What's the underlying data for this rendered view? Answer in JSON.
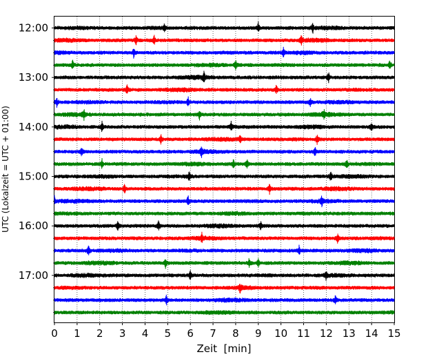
{
  "chart_data": {
    "type": "line",
    "subtype": "helicorder",
    "title": "",
    "xlabel": "Zeit  [min]",
    "ylabel": "UTC (Lokalzeit = UTC + 01:00)",
    "xlim": [
      0,
      15
    ],
    "x_ticks": [
      "0",
      "1",
      "2",
      "3",
      "4",
      "5",
      "6",
      "7",
      "8",
      "9",
      "10",
      "11",
      "12",
      "13",
      "14",
      "15"
    ],
    "y_ticks": [
      "12:00",
      "13:00",
      "14:00",
      "15:00",
      "16:00",
      "17:00"
    ],
    "grid": "vertical dotted",
    "trace_interval_minutes": 15,
    "trace_colors": [
      "#000000",
      "#ff0000",
      "#0000ff",
      "#008000"
    ],
    "traces": [
      {
        "start": "12:00",
        "events_min": [
          4.85,
          9.0,
          11.4
        ]
      },
      {
        "start": "12:15",
        "events_min": [
          3.6,
          4.4,
          10.9
        ]
      },
      {
        "start": "12:30",
        "events_min": [
          3.5,
          10.1
        ]
      },
      {
        "start": "12:45",
        "events_min": [
          0.8,
          8.0,
          14.8
        ]
      },
      {
        "start": "13:00",
        "events_min": [
          6.6,
          12.1
        ]
      },
      {
        "start": "13:15",
        "events_min": [
          3.2,
          9.8
        ]
      },
      {
        "start": "13:30",
        "events_min": [
          0.1,
          5.9,
          11.3
        ]
      },
      {
        "start": "13:45",
        "events_min": [
          1.3,
          6.4,
          11.9
        ]
      },
      {
        "start": "14:00",
        "events_min": [
          2.1,
          7.8,
          14.0
        ]
      },
      {
        "start": "14:15",
        "events_min": [
          4.7,
          8.2,
          11.6
        ]
      },
      {
        "start": "14:30",
        "events_min": [
          1.2,
          6.5,
          11.5
        ]
      },
      {
        "start": "14:45",
        "events_min": [
          2.1,
          7.9,
          8.5,
          12.9
        ]
      },
      {
        "start": "15:00",
        "events_min": [
          5.95,
          12.2
        ]
      },
      {
        "start": "15:15",
        "events_min": [
          3.1,
          9.5
        ]
      },
      {
        "start": "15:30",
        "events_min": [
          0.0,
          5.9,
          11.8
        ]
      },
      {
        "start": "15:45",
        "events_min": []
      },
      {
        "start": "16:00",
        "events_min": [
          2.8,
          4.6,
          9.1
        ]
      },
      {
        "start": "16:15",
        "events_min": [
          6.5,
          12.5
        ]
      },
      {
        "start": "16:30",
        "events_min": [
          1.5,
          10.8
        ]
      },
      {
        "start": "16:45",
        "events_min": [
          4.9,
          8.6,
          9.0
        ]
      },
      {
        "start": "17:00",
        "events_min": [
          6.0,
          12.0
        ]
      },
      {
        "start": "17:15",
        "events_min": [
          8.2
        ]
      },
      {
        "start": "17:30",
        "events_min": [
          4.95,
          12.4
        ]
      },
      {
        "start": "17:45",
        "events_min": []
      }
    ]
  }
}
